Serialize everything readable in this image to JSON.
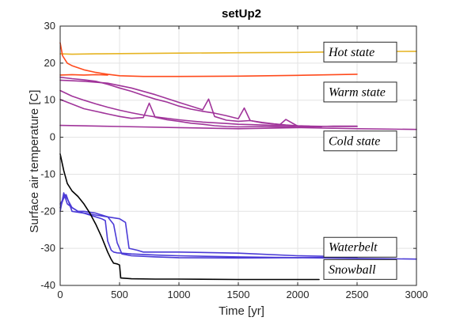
{
  "chart_data": {
    "type": "line",
    "title": "setUp2",
    "xlabel": "Time [yr]",
    "ylabel": "Surface air temperature [C]",
    "xlim": [
      0,
      3000
    ],
    "ylim": [
      -40,
      30
    ],
    "xticks": [
      0,
      500,
      1000,
      1500,
      2000,
      2500,
      3000
    ],
    "yticks": [
      -40,
      -30,
      -20,
      -10,
      0,
      10,
      20,
      30
    ],
    "grid": true,
    "legend": "none",
    "annotations": [
      {
        "text": "Hot state",
        "x": 2220,
        "y": 23
      },
      {
        "text": "Warm state",
        "x": 2220,
        "y": 12.2
      },
      {
        "text": "Cold state",
        "x": 2220,
        "y": -1
      },
      {
        "text": "Waterbelt",
        "x": 2220,
        "y": -29.7
      },
      {
        "text": "Snowball",
        "x": 2220,
        "y": -35.7
      }
    ],
    "series": [
      {
        "color": "#e6b422",
        "x": [
          0,
          100,
          300,
          600,
          1000,
          1500,
          2000,
          2500,
          3000
        ],
        "y": [
          22.5,
          22.4,
          22.5,
          22.6,
          22.7,
          22.8,
          22.9,
          23.1,
          23.2
        ]
      },
      {
        "color": "#ff4a1c",
        "x": [
          0,
          20,
          60,
          100,
          200,
          300,
          400,
          500,
          700,
          1000,
          1500,
          2000,
          2500
        ],
        "y": [
          25.5,
          22,
          20,
          19.3,
          18.2,
          17.5,
          17,
          16.6,
          16.4,
          16.4,
          16.5,
          16.7,
          17
        ]
      },
      {
        "color": "#ff4a1c",
        "x": [
          0,
          100,
          200,
          300,
          400
        ],
        "y": [
          16.8,
          16.9,
          16.8,
          16.9,
          16.8
        ]
      },
      {
        "color": "#a0349a",
        "x": [
          0,
          500,
          1000,
          1500,
          2000,
          2500,
          3000
        ],
        "y": [
          3.2,
          2.9,
          2.6,
          2.3,
          2.6,
          2.3,
          2.1
        ]
      },
      {
        "color": "#a0349a",
        "x": [
          0,
          200,
          400,
          500,
          600,
          700,
          750,
          800,
          900,
          1000,
          1100,
          1200,
          1300,
          1400,
          1500,
          1700,
          2000,
          2300,
          2500
        ],
        "y": [
          10.2,
          7.7,
          6.3,
          5.6,
          5.1,
          5.3,
          9.2,
          5.4,
          4.7,
          4.3,
          3.8,
          3.5,
          3.1,
          2.9,
          2.8,
          2.9,
          2.7,
          3.0,
          3.0
        ]
      },
      {
        "color": "#a0349a",
        "x": [
          0,
          200,
          400,
          600,
          800,
          1000,
          1200,
          1250,
          1300,
          1400,
          1500,
          1600,
          1700,
          1850,
          1900,
          2000,
          2200
        ],
        "y": [
          15.4,
          15.1,
          14.6,
          13.3,
          11.5,
          9.4,
          7.4,
          10.3,
          5.6,
          4.6,
          4.3,
          4.5,
          3.9,
          3.4,
          4.8,
          3.0,
          2.8
        ]
      },
      {
        "color": "#a0349a",
        "x": [
          0,
          100,
          200,
          300,
          400,
          500,
          600,
          700,
          800,
          900,
          1000,
          1100,
          1200,
          1300,
          1400,
          1500,
          1550,
          1600,
          1700,
          1800,
          1900,
          2000,
          2100
        ],
        "y": [
          16.2,
          15.8,
          15.5,
          15.1,
          14.3,
          13.3,
          12.4,
          11.3,
          10.3,
          9.5,
          8.4,
          7.6,
          7.0,
          6.5,
          5.8,
          5.0,
          7.9,
          4.5,
          4.0,
          3.6,
          3.3,
          3.1,
          3.0
        ]
      },
      {
        "color": "#a0349a",
        "x": [
          0,
          100,
          200,
          300,
          400,
          500,
          600,
          700,
          800,
          900,
          1000,
          1100,
          1200,
          1300,
          1400,
          1500,
          1600,
          1700,
          1800,
          1900,
          2000,
          2100,
          2300,
          2500
        ],
        "y": [
          12.6,
          11.1,
          10.0,
          9.0,
          8.1,
          7.3,
          6.6,
          6.0,
          5.5,
          5.1,
          4.7,
          4.4,
          4.1,
          3.9,
          3.7,
          3.5,
          3.4,
          3.3,
          3.2,
          3.1,
          3.0,
          3.0,
          2.9,
          2.9
        ]
      },
      {
        "color": "#4b3bd6",
        "x": [
          0,
          30,
          60,
          100,
          150,
          200,
          250,
          300,
          350,
          380,
          400,
          430,
          450,
          480,
          520,
          600,
          800,
          1000,
          1500,
          2000,
          2500,
          3000
        ],
        "y": [
          -20,
          -15,
          -18,
          -19,
          -20,
          -20.5,
          -21,
          -21.5,
          -22,
          -22.5,
          -28,
          -30.5,
          -31,
          -31.2,
          -31.3,
          -31.5,
          -31.8,
          -32,
          -32.3,
          -32.5,
          -32.7,
          -32.9
        ]
      },
      {
        "color": "#4b3bd6",
        "x": [
          0,
          40,
          100,
          150,
          200,
          300,
          400,
          450,
          480,
          520,
          600,
          800,
          1000,
          1500,
          2000,
          2500
        ],
        "y": [
          -19,
          -15.5,
          -19,
          -20,
          -20,
          -20.5,
          -21.5,
          -23.5,
          -28.5,
          -31.5,
          -32,
          -32.3,
          -32.5,
          -32.6,
          -32.5,
          -32.4
        ]
      },
      {
        "color": "#4b3bd6",
        "x": [
          0,
          50,
          100,
          200,
          300,
          400,
          500,
          550,
          580,
          650,
          700,
          1000,
          1500,
          2000,
          2500
        ],
        "y": [
          -18,
          -15.5,
          -20,
          -20.5,
          -21,
          -21.5,
          -22,
          -23,
          -30,
          -30.5,
          -31,
          -31,
          -31.3,
          -32,
          -32.3
        ]
      },
      {
        "color": "#000000",
        "x": [
          0,
          30,
          60,
          100,
          150,
          200,
          250,
          300,
          350,
          400,
          430,
          450,
          480,
          500,
          510,
          600,
          800,
          1000,
          1500,
          2000,
          2180
        ],
        "y": [
          -4.5,
          -9,
          -12.5,
          -14.5,
          -16,
          -18,
          -20.5,
          -23.5,
          -27,
          -31,
          -33,
          -34,
          -34.2,
          -34.5,
          -38,
          -38.2,
          -38.3,
          -38.3,
          -38.4,
          -38.4,
          -38.4
        ]
      }
    ]
  }
}
